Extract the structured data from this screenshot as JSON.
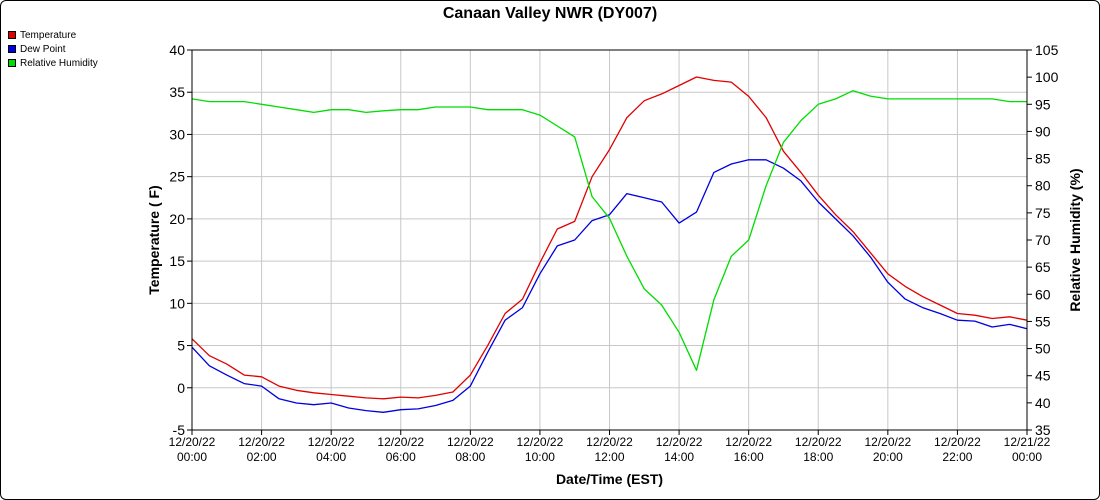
{
  "chart_data": {
    "type": "line",
    "title": "Canaan Valley NWR (DY007)",
    "xlabel": "Date/Time (EST)",
    "ylabel": "Temperature ( F)",
    "y2label": "Relative Humidity (%)",
    "ylim": [
      -5,
      40
    ],
    "y2lim": [
      35,
      105
    ],
    "yticks": [
      "-5",
      "0",
      "5",
      "10",
      "15",
      "20",
      "25",
      "30",
      "35",
      "40"
    ],
    "y2ticks": [
      "35",
      "40",
      "45",
      "50",
      "55",
      "60",
      "65",
      "70",
      "75",
      "80",
      "85",
      "90",
      "95",
      "100",
      "105"
    ],
    "xticks": [
      {
        "date": "12/20/22",
        "time": "00:00"
      },
      {
        "date": "12/20/22",
        "time": "02:00"
      },
      {
        "date": "12/20/22",
        "time": "04:00"
      },
      {
        "date": "12/20/22",
        "time": "06:00"
      },
      {
        "date": "12/20/22",
        "time": "08:00"
      },
      {
        "date": "12/20/22",
        "time": "10:00"
      },
      {
        "date": "12/20/22",
        "time": "12:00"
      },
      {
        "date": "12/20/22",
        "time": "14:00"
      },
      {
        "date": "12/20/22",
        "time": "16:00"
      },
      {
        "date": "12/20/22",
        "time": "18:00"
      },
      {
        "date": "12/20/22",
        "time": "20:00"
      },
      {
        "date": "12/20/22",
        "time": "22:00"
      },
      {
        "date": "12/21/22",
        "time": "00:00"
      }
    ],
    "x_hours": [
      0,
      0.5,
      1,
      1.5,
      2,
      2.5,
      3,
      3.5,
      4,
      4.5,
      5,
      5.5,
      6,
      6.5,
      7,
      7.5,
      8,
      8.5,
      9,
      9.5,
      10,
      10.5,
      11,
      11.5,
      12,
      12.5,
      13,
      13.5,
      14,
      14.5,
      15,
      15.5,
      16,
      16.5,
      17,
      17.5,
      18,
      18.5,
      19,
      19.5,
      20,
      20.5,
      21,
      21.5,
      22,
      22.5,
      23,
      23.5,
      24
    ],
    "grid": true,
    "legend_position": "top-left",
    "series": [
      {
        "name": "Temperature",
        "color": "#e00000",
        "axis": "left",
        "values": [
          5.8,
          3.8,
          2.8,
          1.5,
          1.3,
          0.2,
          -0.3,
          -0.6,
          -0.8,
          -1.0,
          -1.2,
          -1.3,
          -1.1,
          -1.2,
          -0.9,
          -0.5,
          1.5,
          5.0,
          8.8,
          10.5,
          14.8,
          18.8,
          19.7,
          25.0,
          28.2,
          32.0,
          34.0,
          34.8,
          35.8,
          36.8,
          36.4,
          36.2,
          34.5,
          32.0,
          28.0,
          25.5,
          22.8,
          20.5,
          18.5,
          16.0,
          13.5,
          12.0,
          10.8,
          9.8,
          8.8,
          8.6,
          8.2,
          8.4,
          8.0
        ]
      },
      {
        "name": "Dew Point",
        "color": "#0000e0",
        "axis": "left",
        "values": [
          4.8,
          2.6,
          1.5,
          0.5,
          0.2,
          -1.3,
          -1.8,
          -2.0,
          -1.8,
          -2.4,
          -2.7,
          -2.9,
          -2.6,
          -2.5,
          -2.1,
          -1.5,
          0.2,
          4.2,
          8.0,
          9.5,
          13.5,
          16.8,
          17.5,
          19.8,
          20.5,
          23.0,
          22.5,
          22.0,
          19.5,
          20.8,
          25.5,
          26.5,
          27.0,
          27.0,
          26.0,
          24.5,
          22.0,
          20.0,
          18.0,
          15.5,
          12.5,
          10.5,
          9.5,
          8.8,
          8.0,
          7.9,
          7.2,
          7.5,
          7.0
        ]
      },
      {
        "name": "Relative Humidity",
        "color": "#00dd00",
        "axis": "right",
        "values": [
          96,
          95.5,
          95.5,
          95.5,
          95,
          94.5,
          94,
          93.5,
          94,
          94,
          93.5,
          93.8,
          94,
          94,
          94.5,
          94.5,
          94.5,
          94,
          94,
          94,
          93,
          91,
          89,
          78,
          74,
          67,
          61,
          58,
          53,
          46,
          59,
          67,
          70,
          80,
          88,
          92,
          95,
          96,
          97.5,
          96.5,
          96,
          96,
          96,
          96,
          96,
          96,
          96,
          95.5,
          95.5
        ]
      }
    ]
  }
}
